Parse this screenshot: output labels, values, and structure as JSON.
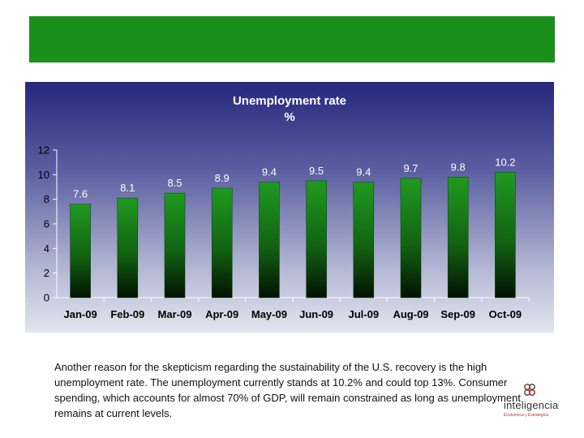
{
  "chart_data": {
    "type": "bar",
    "title": "Unemployment rate",
    "subtitle": "%",
    "categories": [
      "Jan-09",
      "Feb-09",
      "Mar-09",
      "Apr-09",
      "May-09",
      "Jun-09",
      "Jul-09",
      "Aug-09",
      "Sep-09",
      "Oct-09"
    ],
    "values": [
      7.6,
      8.1,
      8.5,
      8.9,
      9.4,
      9.5,
      9.4,
      9.7,
      9.8,
      10.2
    ],
    "value_labels": [
      "7.6",
      "8.1",
      "8.5",
      "8.9",
      "9.4",
      "9.5",
      "9.4",
      "9.7",
      "9.8",
      "10.2"
    ],
    "yticks": [
      "0",
      "2",
      "4",
      "6",
      "8",
      "10",
      "12"
    ],
    "ylim": [
      0,
      12
    ],
    "xlabel": "",
    "ylabel": "",
    "grid": false,
    "colors": {
      "bar_top": "#1f9a1f",
      "bar_bottom": "#031203",
      "panel_top": "#27277e",
      "panel_bottom": "#e3e5ef"
    }
  },
  "body_text": "Another reason for the skepticism regarding the sustainability of the U.S. recovery is the high unemployment rate. The unemployment currently stands at 10.2% and could top 13%. Consumer spending, which accounts for almost 70% of GDP, will remain constrained as long as unemployment remains at current levels.",
  "logo": {
    "name": "inteligencia",
    "tagline": "Economica y Estrategica",
    "accent": "#b2322d"
  },
  "header_color": "#1a8f1a"
}
